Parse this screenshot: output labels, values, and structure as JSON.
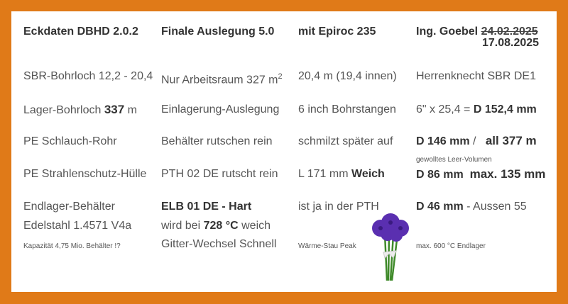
{
  "headers": [
    "Eckdaten DBHD 2.0.2",
    "Finale Auslegung 5.0",
    "mit Epiroc 235",
    "Ing. Goebel"
  ],
  "header_old_date": "24.02.2025",
  "header_new_date": "17.08.2025",
  "col1": {
    "r1": "SBR-Bohrloch 12,2 - 20,4",
    "r2a": "Lager-Bohrloch ",
    "r2b": "337",
    "r2c": " m",
    "r3": "PE Schlauch-Rohr",
    "r4": "PE Strahlenschutz-Hülle",
    "r5": "Endlager-Behälter",
    "r6": "Edelstahl 1.4571 V4a",
    "r7": "Kapazität 4,75 Mio. Behälter !?"
  },
  "col2": {
    "r1a": "Nur Arbeitsraum 327 m",
    "r1b": "2",
    "r2": "Einlagerung-Auslegung",
    "r3": "Behälter rutschen rein",
    "r4": "PTH 02 DE rutscht rein",
    "r5": "ELB 01 DE - Hart",
    "r6a": "wird bei ",
    "r6b": "728 °C",
    "r6c": " weich",
    "r7": "Gitter-Wechsel Schnell"
  },
  "col3": {
    "r1": "20,4 m (19,4 innen)",
    "r2": "6 inch Bohrstangen",
    "r3": "schmilzt später auf",
    "r4a": "L 171 mm ",
    "r4b": "Weich",
    "r5": "ist ja in der PTH",
    "r7": "Wärme-Stau Peak"
  },
  "col4": {
    "r1": "Herrenknecht SBR DE1",
    "r2a": "6\" x 25,4 = ",
    "r2b": "D 152,4 mm",
    "r3a": "D 146 mm",
    "r3b": " /   ",
    "r3c": "all 377",
    "r3d": " m",
    "r3note": "gewolltes Leer-Volumen",
    "r4a": "D 86 mm",
    "r4b": "max. 135 mm",
    "r5a": "D 46 mm",
    "r5b": " - Aussen 55",
    "r7": "max. 600 °C Endlager"
  },
  "colors": {
    "border": "#e07a18",
    "flower": "#5a2fb0",
    "stem": "#3f8a2a"
  }
}
